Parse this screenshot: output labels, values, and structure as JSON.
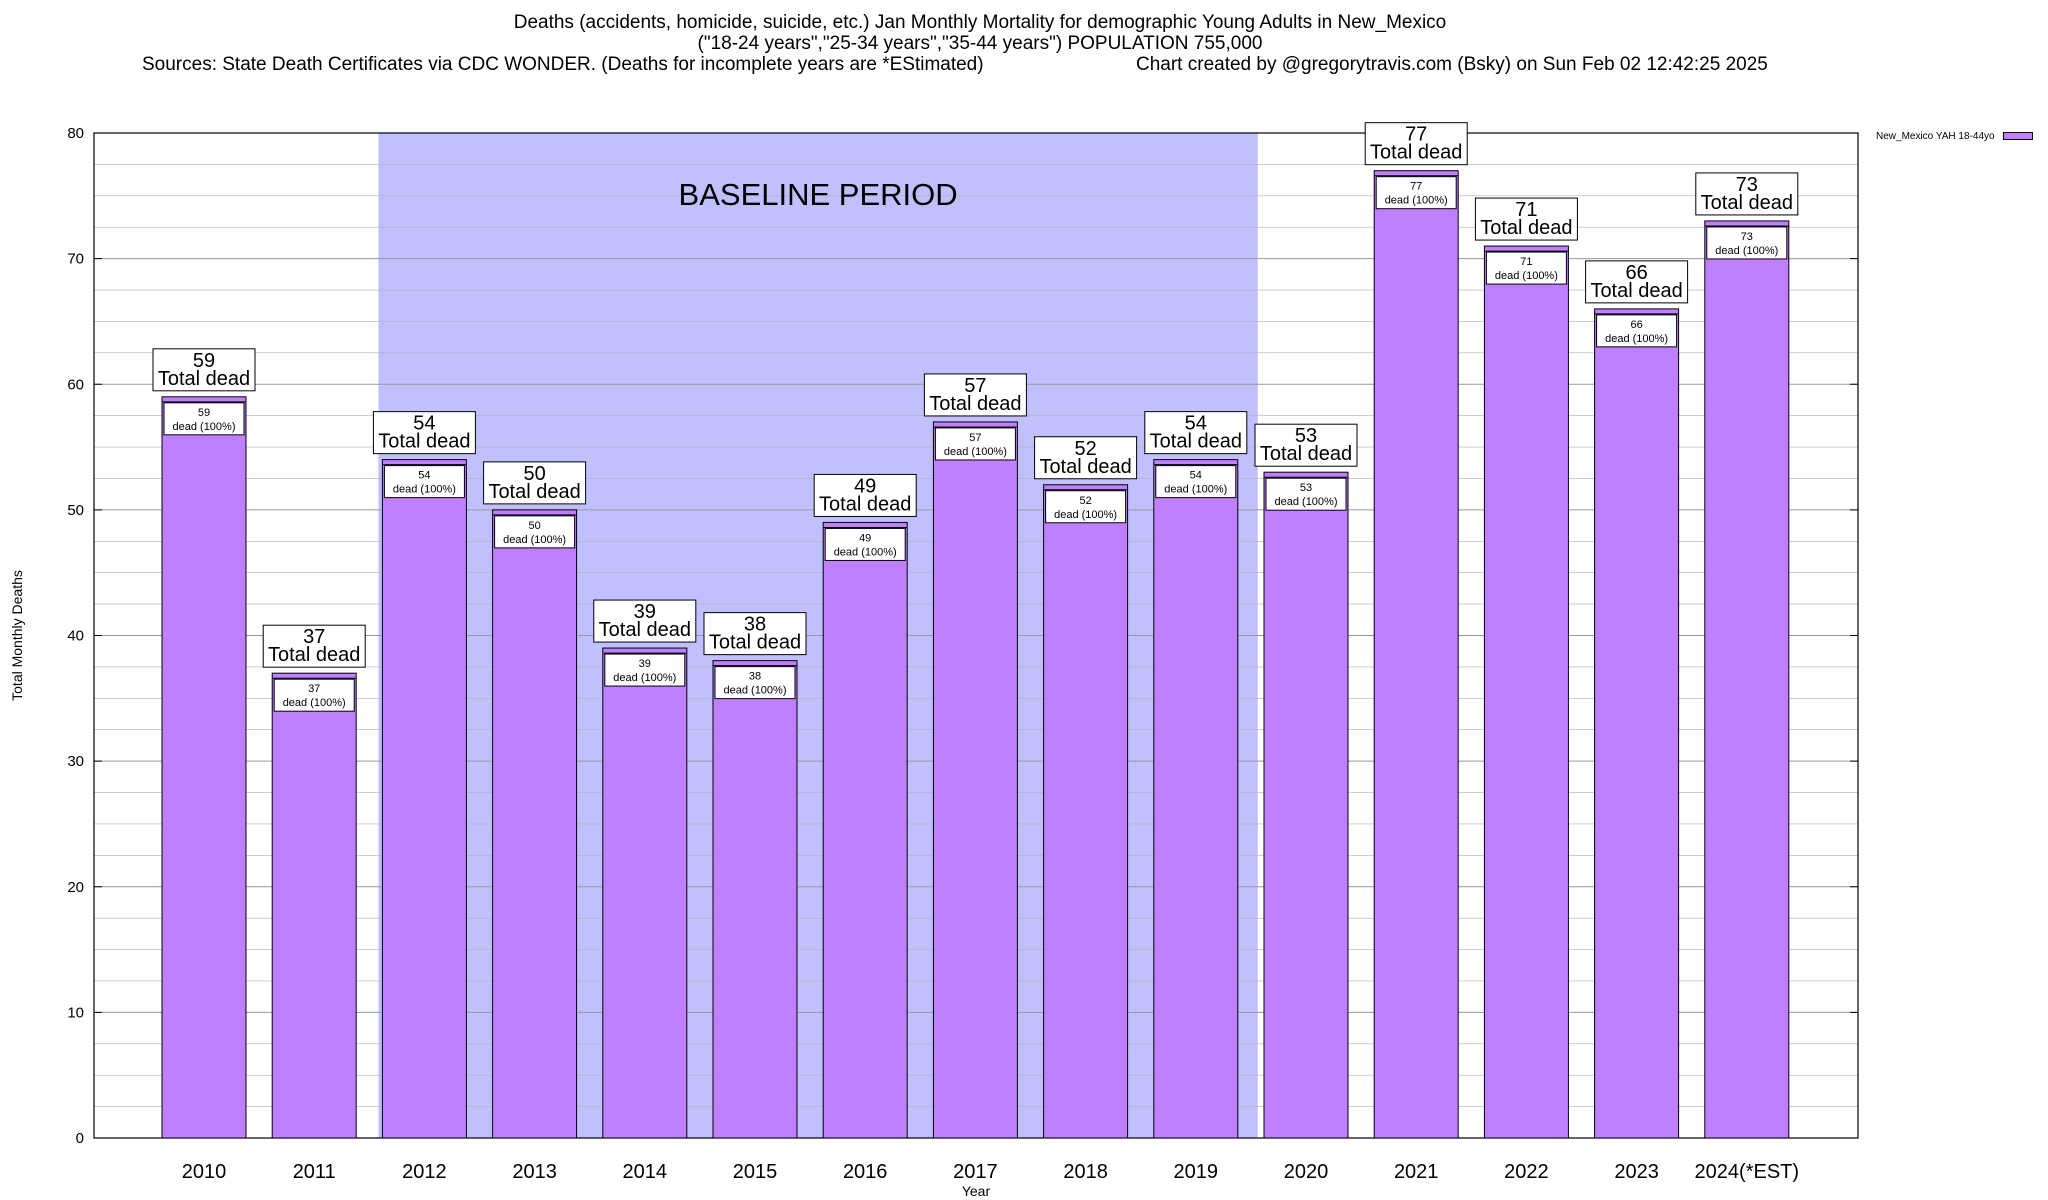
{
  "chart_data": {
    "type": "bar",
    "title_line1": "Deaths (accidents, homicide, suicide, etc.) Jan Monthly Mortality for demographic Young Adults in New_Mexico",
    "title_line2": "(\"18-24 years\",\"25-34 years\",\"35-44 years\") POPULATION 755,000",
    "sources": "Sources: State Death Certificates via CDC WONDER. (Deaths for incomplete years are *EStimated)",
    "credit": "Chart created by @gregorytravis.com (Bsky) on Sun Feb 02 12:42:25 2025",
    "xlabel": "Year",
    "ylabel": "Total Monthly Deaths",
    "ylim": [
      0,
      80
    ],
    "yticks": [
      0,
      10,
      20,
      30,
      40,
      50,
      60,
      70,
      80
    ],
    "grid": true,
    "categories": [
      "2010",
      "2011",
      "2012",
      "2013",
      "2014",
      "2015",
      "2016",
      "2017",
      "2018",
      "2019",
      "2020",
      "2021",
      "2022",
      "2023",
      "2024(*EST)"
    ],
    "series": [
      {
        "name": "New_Mexico YAH 18-44yo",
        "values": [
          59,
          37,
          54,
          50,
          39,
          38,
          49,
          57,
          52,
          54,
          53,
          77,
          71,
          66,
          73
        ]
      }
    ],
    "total_label_suffix": "Total dead",
    "segment_label_suffix": "dead (100%)",
    "baseline": {
      "label": "BASELINE PERIOD",
      "from": "2012",
      "to": "2019"
    },
    "legend_position": "top-right",
    "colors": {
      "bar": "#bf7fff",
      "baseline": "#c0c0ff",
      "grid": "#b0b0b0"
    }
  }
}
